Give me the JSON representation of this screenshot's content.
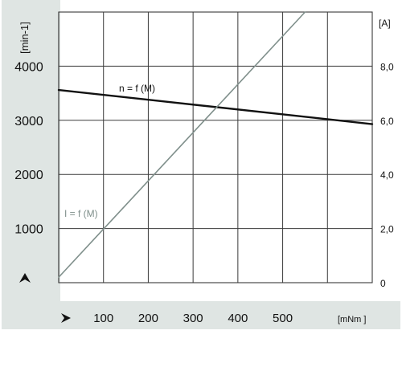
{
  "chart_data": {
    "type": "line",
    "title": "",
    "xlabel": "[mNm ]",
    "ylabel_left": "[min-1]",
    "ylabel_right": "[A]",
    "x_ticks": [
      "100",
      "200",
      "300",
      "400",
      "500"
    ],
    "y_left_ticks": [
      "1000",
      "2000",
      "3000",
      "4000"
    ],
    "y_right_ticks": [
      "0",
      "2,0",
      "4,0",
      "6,0",
      "8,0"
    ],
    "xlim": [
      0,
      700
    ],
    "ylim_left": [
      0,
      5000
    ],
    "ylim_right": [
      0,
      10
    ],
    "grid": true,
    "colors": {
      "speed_line": "#111111",
      "current_line": "#7f8f8b",
      "axis_panel": "#dfe5e3",
      "grid": "#3a3a3a"
    },
    "series": [
      {
        "name": "n = f (M)",
        "axis": "left",
        "x": [
          0,
          700
        ],
        "y": [
          3560,
          2930
        ]
      },
      {
        "name": "I = f (M)",
        "axis": "right",
        "x": [
          0,
          550
        ],
        "y": [
          0.2,
          10.0
        ]
      }
    ]
  }
}
